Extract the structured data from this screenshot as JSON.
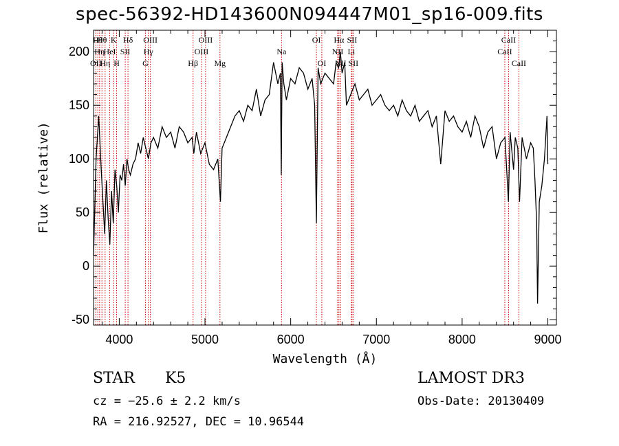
{
  "chart_data": {
    "type": "line",
    "title": "spec-56392-HD143600N094447M01_sp16-009.fits",
    "xlabel": "Wavelength (Å)",
    "ylabel": "Flux (relative)",
    "xlim": [
      3700,
      9100
    ],
    "ylim": [
      -55,
      220
    ],
    "xticks": [
      4000,
      5000,
      6000,
      7000,
      8000,
      9000
    ],
    "yticks": [
      -50,
      0,
      50,
      100,
      150,
      200
    ],
    "grid": false,
    "series": [
      {
        "values_description_free": true,
        "x": [
          3700,
          3730,
          3760,
          3790,
          3810,
          3830,
          3850,
          3870,
          3890,
          3910,
          3930,
          3950,
          3970,
          3990,
          4010,
          4030,
          4050,
          4070,
          4090,
          4110,
          4130,
          4160,
          4190,
          4220,
          4250,
          4280,
          4310,
          4340,
          4370,
          4400,
          4450,
          4500,
          4550,
          4600,
          4650,
          4700,
          4750,
          4800,
          4850,
          4870,
          4900,
          4950,
          5000,
          5050,
          5100,
          5150,
          5180,
          5200,
          5250,
          5300,
          5350,
          5400,
          5450,
          5500,
          5550,
          5600,
          5650,
          5700,
          5750,
          5800,
          5850,
          5880,
          5890,
          5900,
          5920,
          5950,
          6000,
          6050,
          6100,
          6150,
          6200,
          6250,
          6280,
          6300,
          6320,
          6350,
          6400,
          6450,
          6500,
          6530,
          6560,
          6580,
          6600,
          6630,
          6650,
          6700,
          6750,
          6800,
          6850,
          6900,
          6950,
          7000,
          7050,
          7100,
          7150,
          7200,
          7250,
          7300,
          7350,
          7400,
          7450,
          7500,
          7550,
          7600,
          7650,
          7700,
          7750,
          7800,
          7850,
          7900,
          7950,
          8000,
          8050,
          8100,
          8150,
          8200,
          8250,
          8300,
          8350,
          8400,
          8450,
          8500,
          8540,
          8560,
          8600,
          8620,
          8650,
          8670,
          8700,
          8750,
          8800,
          8830,
          8850,
          8870,
          8880,
          8900,
          8930,
          8960,
          8990,
          9000
        ],
        "y": [
          10,
          100,
          140,
          90,
          60,
          30,
          80,
          45,
          20,
          70,
          40,
          90,
          75,
          50,
          85,
          80,
          95,
          75,
          100,
          90,
          85,
          95,
          100,
          115,
          105,
          120,
          110,
          100,
          115,
          120,
          110,
          130,
          120,
          125,
          110,
          130,
          125,
          115,
          120,
          105,
          125,
          105,
          115,
          95,
          90,
          100,
          60,
          110,
          120,
          130,
          140,
          145,
          135,
          150,
          145,
          165,
          140,
          155,
          160,
          190,
          170,
          180,
          85,
          190,
          170,
          155,
          175,
          170,
          185,
          180,
          165,
          175,
          150,
          40,
          185,
          170,
          180,
          175,
          170,
          190,
          185,
          200,
          180,
          190,
          150,
          160,
          170,
          155,
          160,
          165,
          150,
          155,
          160,
          150,
          145,
          150,
          140,
          155,
          145,
          140,
          150,
          135,
          140,
          145,
          130,
          140,
          95,
          145,
          135,
          140,
          130,
          125,
          135,
          120,
          140,
          130,
          110,
          125,
          130,
          100,
          115,
          120,
          60,
          125,
          90,
          120,
          110,
          60,
          120,
          100,
          115,
          110,
          80,
          40,
          -35,
          60,
          75,
          100,
          140,
          95
        ]
      }
    ],
    "line_ids": [
      {
        "lam": 3727,
        "label": "OII",
        "row": 3
      },
      {
        "lam": 3750,
        "label": "Hθ",
        "row": 1
      },
      {
        "lam": 3771,
        "label": "Hη",
        "row": 2
      },
      {
        "lam": 3798,
        "label": "Hθ",
        "row": 1
      },
      {
        "lam": 3835,
        "label": "Hη",
        "row": 3
      },
      {
        "lam": 3889,
        "label": "HeI",
        "row": 2
      },
      {
        "lam": 3934,
        "label": "K",
        "row": 1
      },
      {
        "lam": 3969,
        "label": "H",
        "row": 3
      },
      {
        "lam": 4070,
        "label": "SII",
        "row": 2
      },
      {
        "lam": 4102,
        "label": "Hδ",
        "row": 1
      },
      {
        "lam": 4305,
        "label": "G",
        "row": 3
      },
      {
        "lam": 4340,
        "label": "Hγ",
        "row": 2
      },
      {
        "lam": 4363,
        "label": "OIII",
        "row": 1
      },
      {
        "lam": 4861,
        "label": "Hβ",
        "row": 3
      },
      {
        "lam": 4959,
        "label": "OIII",
        "row": 2
      },
      {
        "lam": 5007,
        "label": "OIII",
        "row": 1
      },
      {
        "lam": 5175,
        "label": "Mg",
        "row": 3
      },
      {
        "lam": 5893,
        "label": "Na",
        "row": 2
      },
      {
        "lam": 6300,
        "label": "OI",
        "row": 1
      },
      {
        "lam": 6363,
        "label": "OI",
        "row": 3
      },
      {
        "lam": 6548,
        "label": "NII",
        "row": 2
      },
      {
        "lam": 6563,
        "label": "Hα",
        "row": 1
      },
      {
        "lam": 6583,
        "label": "NII",
        "row": 3
      },
      {
        "lam": 6708,
        "label": "Li",
        "row": 2
      },
      {
        "lam": 6716,
        "label": "SII",
        "row": 1
      },
      {
        "lam": 6731,
        "label": "SII",
        "row": 3
      },
      {
        "lam": 8498,
        "label": "CaII",
        "row": 2
      },
      {
        "lam": 8542,
        "label": "CaII",
        "row": 1
      },
      {
        "lam": 8662,
        "label": "CaII",
        "row": 3
      }
    ]
  },
  "info": {
    "object_class": "STAR",
    "subclass": "K5",
    "survey": "LAMOST DR3",
    "cz_line": "cz = −25.6 ± 2.2 km/s",
    "obs_date_line": "Obs-Date: 20130409",
    "radec_line": "RA = 216.92527, DEC =  10.96544"
  },
  "colors": {
    "spectrum": "#000000",
    "line_markers": "#cc0000",
    "background": "#ffffff"
  }
}
